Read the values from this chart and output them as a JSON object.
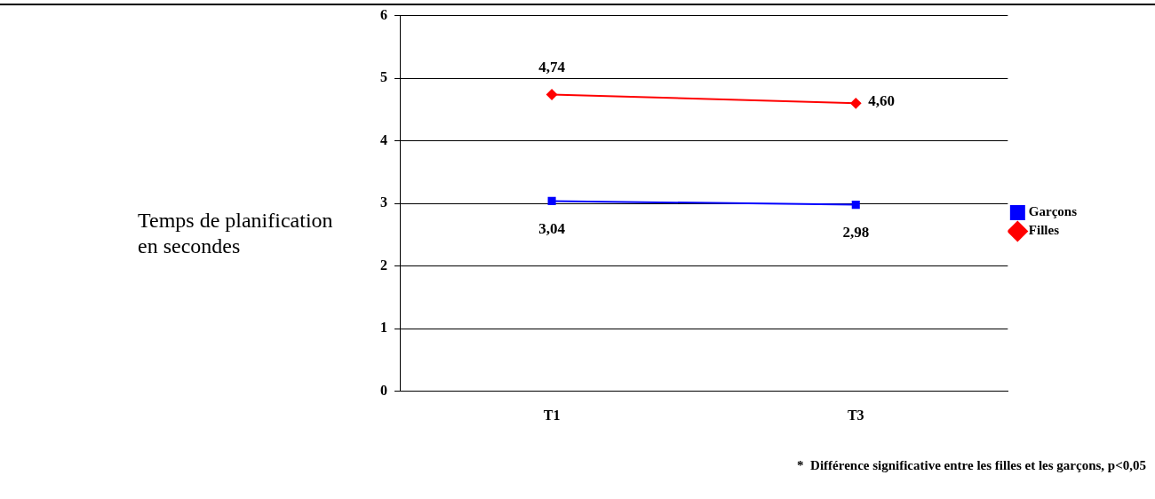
{
  "chart_data": {
    "type": "line",
    "ylabel": "Temps de planification en secondes",
    "categories": [
      "T1",
      "T3"
    ],
    "series": [
      {
        "name": "Garçons",
        "color": "#0000ff",
        "marker": "square",
        "values": [
          3.04,
          2.98
        ],
        "value_labels": [
          "3,04",
          "2,98"
        ]
      },
      {
        "name": "Filles",
        "color": "#ff0000",
        "marker": "diamond",
        "values": [
          4.74,
          4.6
        ],
        "value_labels": [
          "4,74",
          "4,60"
        ]
      }
    ],
    "ylim": [
      0,
      6
    ],
    "yticks": [
      0,
      1,
      2,
      3,
      4,
      5,
      6
    ],
    "grid": "y",
    "legend": "right",
    "annotations": [
      "*  Différence significative entre les filles et les garçons, p<0,05"
    ]
  }
}
